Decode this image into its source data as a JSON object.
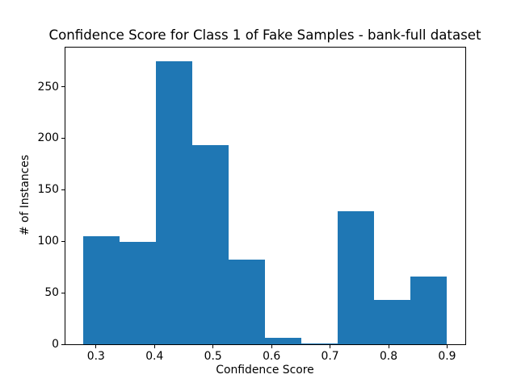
{
  "chart_data": {
    "type": "histogram",
    "title": "Confidence Score for Class 1 of Fake Samples - bank-full dataset",
    "xlabel": "Confidence Score",
    "ylabel": "# of Instances",
    "bar_color": "#1f77b4",
    "axis_color": "#000000",
    "background_color": "#ffffff",
    "bin_edges": [
      0.2775,
      0.3398,
      0.402,
      0.4643,
      0.5265,
      0.5888,
      0.651,
      0.7133,
      0.7755,
      0.8378,
      0.9
    ],
    "counts": [
      105,
      99,
      275,
      193,
      82,
      6,
      1,
      129,
      43,
      66
    ],
    "xlim": [
      0.246375,
      0.931125
    ],
    "ylim": [
      0,
      288.75
    ],
    "x_ticks": [
      0.3,
      0.4,
      0.5,
      0.6,
      0.7,
      0.8,
      0.9
    ],
    "x_tick_labels": [
      "0.3",
      "0.4",
      "0.5",
      "0.6",
      "0.7",
      "0.8",
      "0.9"
    ],
    "y_ticks": [
      0,
      50,
      100,
      150,
      200,
      250
    ],
    "y_tick_labels": [
      "0",
      "50",
      "100",
      "150",
      "200",
      "250"
    ],
    "grid": false,
    "legend": "none"
  }
}
